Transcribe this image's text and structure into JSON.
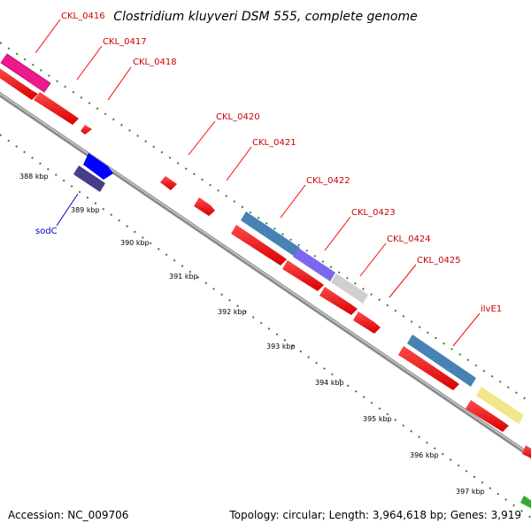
{
  "title": "Clostridium kluyveri DSM 555, complete genome",
  "footer": {
    "accession": "Accession: NC_009706",
    "summary": "Topology: circular; Length: 3,964,618 bp; Genes: 3,919"
  },
  "colors": {
    "cds": "#ff0000",
    "gene_label": "#cc0000",
    "blue_label": "#0000cc",
    "backbone": "#999999",
    "dotted_track": "#228b22"
  },
  "gene_labels": [
    {
      "id": "CKL_0416",
      "text": "CKL_0416",
      "color": "#cc0000"
    },
    {
      "id": "CKL_0417",
      "text": "CKL_0417",
      "color": "#cc0000"
    },
    {
      "id": "CKL_0418",
      "text": "CKL_0418",
      "color": "#cc0000"
    },
    {
      "id": "CKL_0420",
      "text": "CKL_0420",
      "color": "#cc0000"
    },
    {
      "id": "CKL_0421",
      "text": "CKL_0421",
      "color": "#cc0000"
    },
    {
      "id": "CKL_0422",
      "text": "CKL_0422",
      "color": "#cc0000"
    },
    {
      "id": "CKL_0423",
      "text": "CKL_0423",
      "color": "#cc0000"
    },
    {
      "id": "CKL_0424",
      "text": "CKL_0424",
      "color": "#cc0000"
    },
    {
      "id": "CKL_0425",
      "text": "CKL_0425",
      "color": "#cc0000"
    },
    {
      "id": "ilvE1",
      "text": "ilvE1",
      "color": "#cc0000"
    },
    {
      "id": "sodC",
      "text": "sodC",
      "color": "#0000cc"
    }
  ],
  "kbp_ticks": [
    "388 kbp",
    "389 kbp",
    "390 kbp",
    "391 kbp",
    "392 kbp",
    "393 kbp",
    "394 kbp",
    "395 kbp",
    "396 kbp",
    "397 kbp"
  ]
}
